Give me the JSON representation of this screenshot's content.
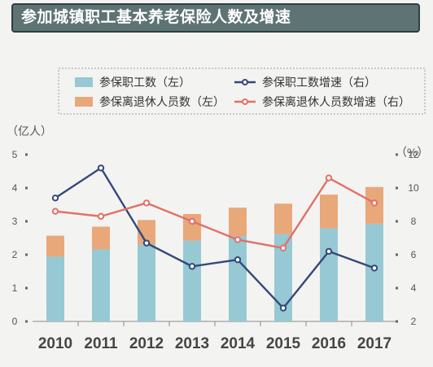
{
  "title": "参加城镇职工基本养老保险人数及增速",
  "chart_data": {
    "type": "bar",
    "categories": [
      "2010",
      "2011",
      "2012",
      "2013",
      "2014",
      "2015",
      "2016",
      "2017"
    ],
    "series": [
      {
        "name": "参保职工数（左）",
        "kind": "bar-stack",
        "axis": "left",
        "color": "#96c9d3",
        "values": [
          1.94,
          2.16,
          2.3,
          2.42,
          2.56,
          2.62,
          2.79,
          2.93
        ]
      },
      {
        "name": "参保离退休人员数（左）",
        "kind": "bar-stack",
        "axis": "left",
        "color": "#e8a87a",
        "values": [
          0.63,
          0.68,
          0.74,
          0.8,
          0.85,
          0.91,
          1.01,
          1.1
        ]
      },
      {
        "name": "参保职工数增速（右）",
        "kind": "line",
        "axis": "right",
        "color": "#34497a",
        "values": [
          9.4,
          11.2,
          6.7,
          5.3,
          5.7,
          2.8,
          6.2,
          5.2
        ]
      },
      {
        "name": "参保离退休人员数增速（右）",
        "kind": "line",
        "axis": "right",
        "color": "#e27068",
        "values": [
          8.6,
          8.3,
          9.1,
          8.0,
          6.9,
          6.4,
          10.6,
          9.1
        ]
      }
    ],
    "left_axis": {
      "label": "（亿人）",
      "ticks": [
        "0",
        "1",
        "2",
        "3",
        "4",
        "5"
      ],
      "range": [
        0,
        5
      ]
    },
    "right_axis": {
      "label": "（%）",
      "ticks": [
        "2",
        "4",
        "6",
        "8",
        "10",
        "12"
      ],
      "range": [
        2,
        12
      ]
    },
    "legend_position": "top",
    "grid": false
  }
}
